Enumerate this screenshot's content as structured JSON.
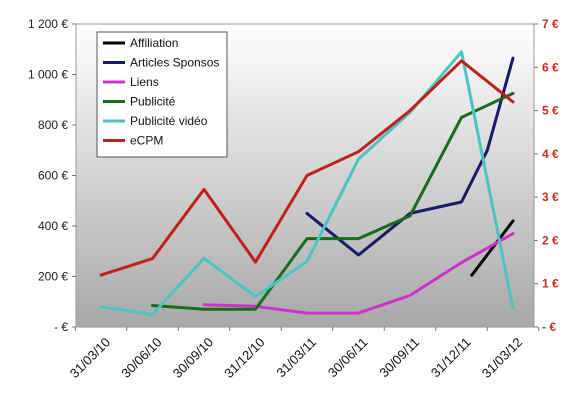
{
  "chart_data": {
    "type": "line",
    "categories": [
      "31/03/10",
      "30/06/10",
      "30/09/10",
      "31/12/10",
      "31/03/11",
      "30/06/11",
      "30/09/11",
      "31/12/11",
      "31/03/12"
    ],
    "y_left": {
      "ylim": [
        0,
        1200
      ],
      "ticks": [
        0,
        200,
        400,
        600,
        800,
        1000,
        1200
      ],
      "tick_labels": [
        "- €",
        "200 €",
        "400 €",
        "600 €",
        "800 €",
        "1 000 €",
        "1 200 €"
      ]
    },
    "y_right": {
      "ylim": [
        0,
        7
      ],
      "ticks": [
        0,
        1,
        2,
        3,
        4,
        5,
        6,
        7
      ],
      "tick_labels": [
        "- €",
        "1 €",
        "2 €",
        "3 €",
        "4 €",
        "5 €",
        "6 €",
        "7 €"
      ]
    },
    "grid": false,
    "legend_position": "top-left",
    "series": [
      {
        "name": "Affiliation",
        "axis": "left",
        "color": "#000000",
        "points": [
          [
            7.2,
            205
          ],
          [
            8,
            420
          ]
        ]
      },
      {
        "name": "Articles Sponsos",
        "axis": "left",
        "color": "#1a1a66",
        "points": [
          [
            4,
            450
          ],
          [
            5,
            285
          ],
          [
            6,
            450
          ],
          [
            7,
            495
          ],
          [
            7.5,
            700
          ],
          [
            8,
            1065
          ]
        ]
      },
      {
        "name": "Liens",
        "axis": "left",
        "color": "#cc33cc",
        "points": [
          [
            2,
            88
          ],
          [
            3,
            82
          ],
          [
            4,
            55
          ],
          [
            5,
            55
          ],
          [
            6,
            125
          ],
          [
            7,
            255
          ],
          [
            8,
            370
          ]
        ]
      },
      {
        "name": "Publicité",
        "axis": "left",
        "color": "#1a6b1a",
        "points": [
          [
            1,
            85
          ],
          [
            2,
            70
          ],
          [
            3,
            70
          ],
          [
            4,
            350
          ],
          [
            5,
            350
          ],
          [
            6,
            440
          ],
          [
            7,
            830
          ],
          [
            8,
            925
          ]
        ]
      },
      {
        "name": "Publicité vidéo",
        "axis": "left",
        "color": "#4cc4c4",
        "points": [
          [
            0,
            80
          ],
          [
            1,
            50
          ],
          [
            2,
            272
          ],
          [
            3,
            120
          ],
          [
            4,
            260
          ],
          [
            5,
            665
          ],
          [
            6,
            850
          ],
          [
            7,
            1090
          ],
          [
            8,
            75
          ]
        ]
      },
      {
        "name": "eCPM",
        "axis": "right",
        "color": "#c0221b",
        "points": [
          [
            0,
            1.2
          ],
          [
            1,
            1.58
          ],
          [
            2,
            3.18
          ],
          [
            3,
            1.5
          ],
          [
            4,
            3.5
          ],
          [
            5,
            4.05
          ],
          [
            6,
            5.0
          ],
          [
            7,
            6.15
          ],
          [
            8,
            5.2
          ]
        ]
      }
    ]
  }
}
